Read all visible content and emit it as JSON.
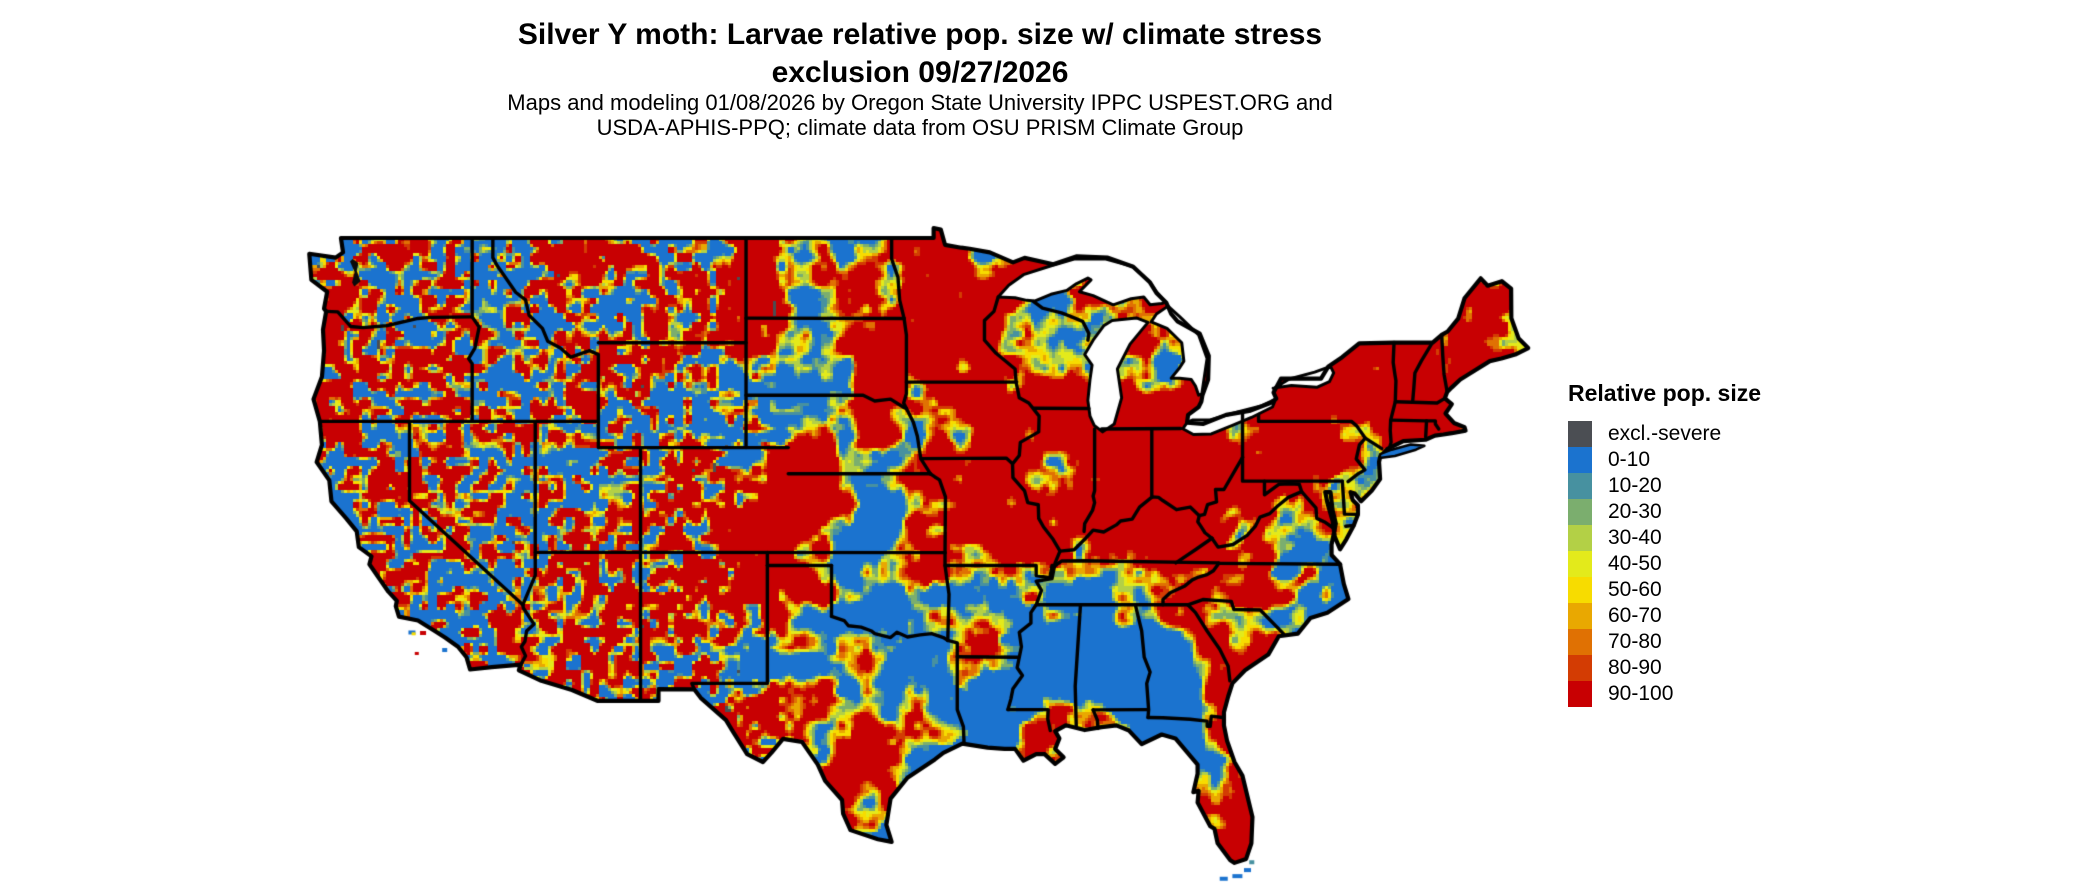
{
  "header": {
    "title_line1": "Silver Y moth: Larvae relative pop. size w/ climate stress",
    "title_line2": "exclusion 09/27/2026",
    "subtitle_line1": "Maps and modeling 01/08/2026 by Oregon State University IPPC USPEST.ORG and",
    "subtitle_line2": "USDA-APHIS-PPQ; climate data from OSU PRISM Climate Group"
  },
  "legend": {
    "title": "Relative pop. size",
    "items": [
      {
        "label": "excl.-severe",
        "color": "#4b4e53"
      },
      {
        "label": "0-10",
        "color": "#1b73cf"
      },
      {
        "label": "10-20",
        "color": "#4791a0"
      },
      {
        "label": "20-30",
        "color": "#7bae6e"
      },
      {
        "label": "30-40",
        "color": "#b3d046"
      },
      {
        "label": "40-50",
        "color": "#e3ea1b"
      },
      {
        "label": "50-60",
        "color": "#f7dc00"
      },
      {
        "label": "60-70",
        "color": "#e9a801"
      },
      {
        "label": "70-80",
        "color": "#e07103"
      },
      {
        "label": "80-90",
        "color": "#d33c03"
      },
      {
        "label": "90-100",
        "color": "#c80002"
      }
    ]
  },
  "map": {
    "outline_color": "#000000",
    "water_color": "#ffffff"
  }
}
